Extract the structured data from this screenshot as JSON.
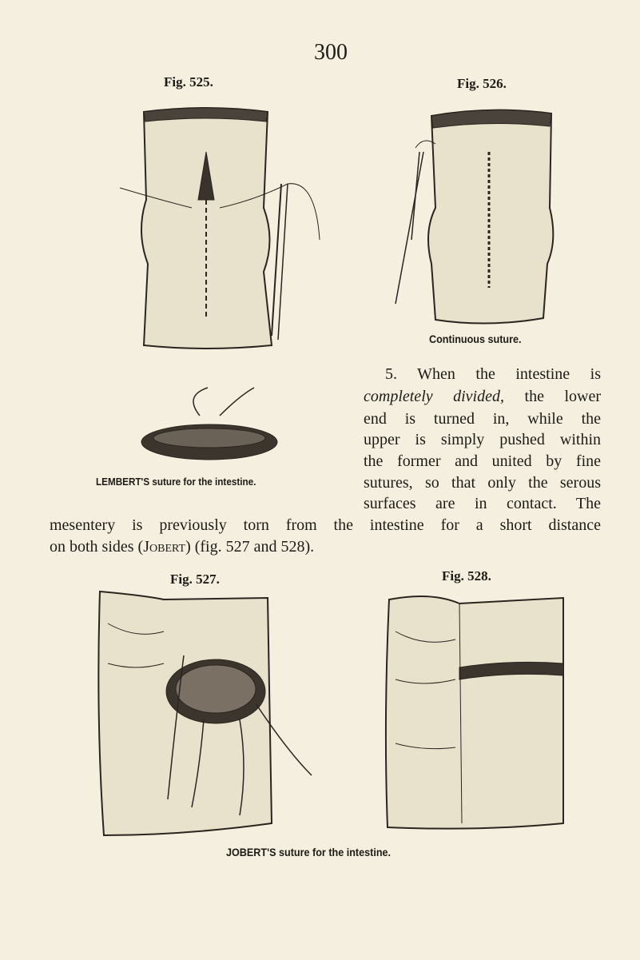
{
  "page_number": "300",
  "figures": [
    {
      "label": "Fig. 525."
    },
    {
      "label": "Fig. 526.",
      "caption": "Continuous suture."
    },
    {
      "caption": "LEMBERT'S suture for the intestine."
    },
    {
      "label": "Fig. 527."
    },
    {
      "label": "Fig. 528."
    }
  ],
  "shared_caption": "JOBERT'S suture for the intestine.",
  "paragraph": {
    "lines": [
      [
        "5. When the intestine is"
      ],
      [
        "completely divided,",
        "the lower"
      ],
      [
        "end is turned in, while the"
      ],
      [
        "upper is simply pushed within"
      ],
      [
        "the former and united by fine"
      ],
      [
        "sutures, so that only the serous"
      ],
      [
        "surfaces are in contact. The"
      ],
      [
        "mesentery is previously torn from the intestine for a short distance"
      ],
      [
        "on both sides (",
        "Jobert",
        ") (fig. 527 and 528)."
      ]
    ]
  }
}
